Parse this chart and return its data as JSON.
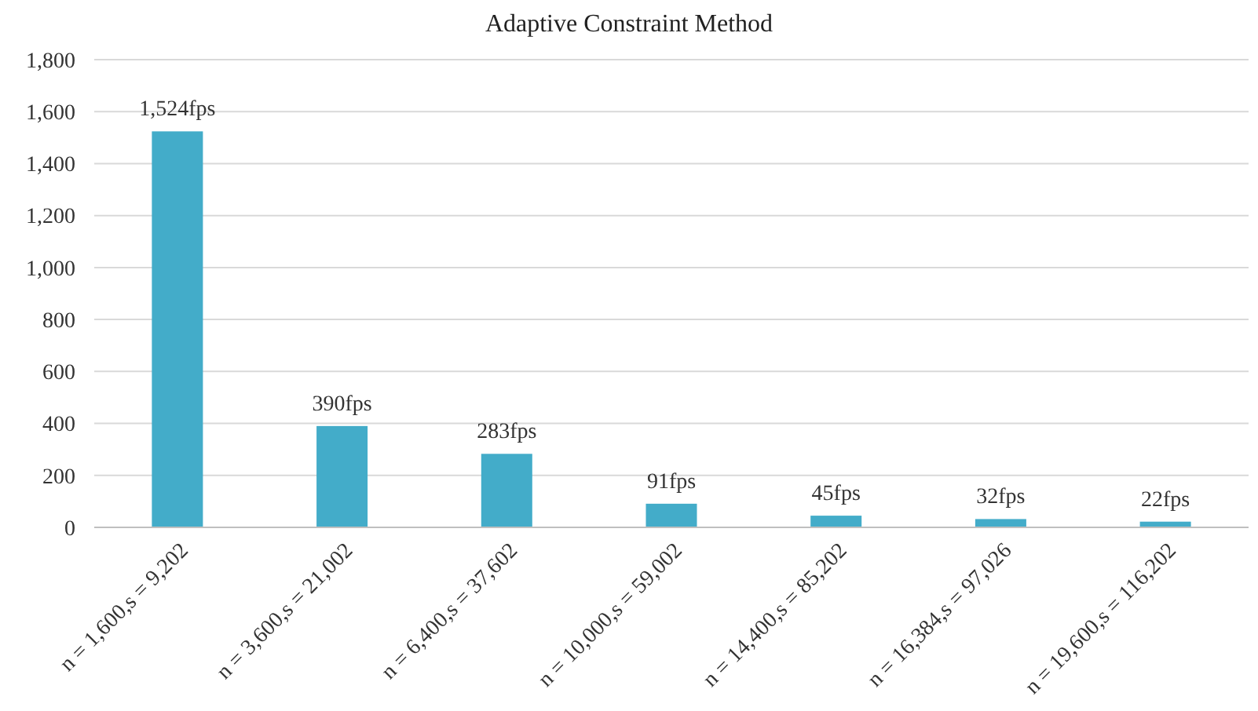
{
  "chart_data": {
    "type": "bar",
    "title": "Adaptive Constraint Method",
    "categories": [
      "n = 1,600,s = 9,202",
      "n = 3,600,s = 21,002",
      "n = 6,400,s = 37,602",
      "n = 10,000,s = 59,002",
      "n = 14,400,s = 85,202",
      "n = 16,384,s = 97,026",
      "n = 19,600,s = 116,202"
    ],
    "values": [
      1524,
      390,
      283,
      91,
      45,
      32,
      22
    ],
    "value_labels": [
      "1,524fps",
      "390fps",
      "283fps",
      "91fps",
      "45fps",
      "32fps",
      "22fps"
    ],
    "color": "#43acc9",
    "ylim": [
      0,
      1800
    ],
    "yticks": [
      {
        "value": 0,
        "label": "0"
      },
      {
        "value": 200,
        "label": "200"
      },
      {
        "value": 400,
        "label": "400"
      },
      {
        "value": 600,
        "label": "600"
      },
      {
        "value": 800,
        "label": "800"
      },
      {
        "value": 1000,
        "label": "1,000"
      },
      {
        "value": 1200,
        "label": "1,200"
      },
      {
        "value": 1400,
        "label": "1,400"
      },
      {
        "value": 1600,
        "label": "1,600"
      },
      {
        "value": 1800,
        "label": "1,800"
      }
    ],
    "grid": "y"
  }
}
